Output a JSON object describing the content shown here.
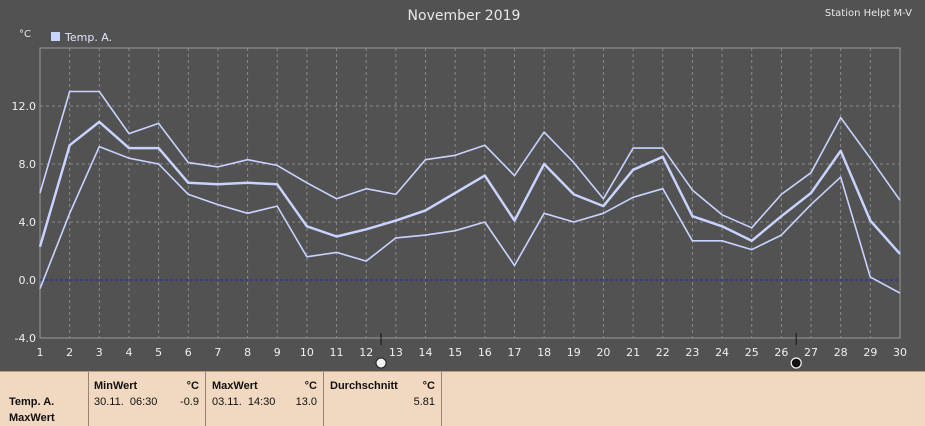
{
  "header": {
    "title": "November 2019",
    "station": "Station Helpt M-V",
    "unit": "°C"
  },
  "legend": {
    "label": "Temp. A.",
    "color": "#c8d4ff"
  },
  "colors": {
    "background": "#525252",
    "grid": "#8a8a8a",
    "line": "#c8d4ff",
    "zero_line": "#1f2bb0",
    "axis_text": "#f0f0f0",
    "stats_bg": "#f1d8c0"
  },
  "markers": {
    "full_moon_day": 12.5,
    "new_moon_day": 26.5
  },
  "chart_data": {
    "type": "line",
    "x": [
      1,
      2,
      3,
      4,
      5,
      6,
      7,
      8,
      9,
      10,
      11,
      12,
      13,
      14,
      15,
      16,
      17,
      18,
      19,
      20,
      21,
      22,
      23,
      24,
      25,
      26,
      27,
      28,
      29,
      30
    ],
    "xlim": [
      1,
      30
    ],
    "ylim": [
      -4,
      16
    ],
    "yticks": [
      -4,
      0,
      4,
      8,
      12
    ],
    "ytick_labels": [
      "-4.0",
      "0.0",
      "4.0",
      "8.0",
      "12.0"
    ],
    "xtick_labels": [
      "1",
      "2",
      "3",
      "4",
      "5",
      "6",
      "7",
      "8",
      "9",
      "10",
      "11",
      "12",
      "13",
      "14",
      "15",
      "16",
      "17",
      "18",
      "19",
      "20",
      "21",
      "22",
      "23",
      "24",
      "25",
      "26",
      "27",
      "28",
      "29",
      "30"
    ],
    "grid": true,
    "legend_position": "top-left",
    "series": [
      {
        "name": "Temp. A.",
        "role": "max",
        "values": [
          6.0,
          13.0,
          13.0,
          10.1,
          10.8,
          8.1,
          7.8,
          8.3,
          7.9,
          6.7,
          5.6,
          6.3,
          5.9,
          8.3,
          8.6,
          9.3,
          7.2,
          10.2,
          8.1,
          5.6,
          9.1,
          9.1,
          6.2,
          4.5,
          3.6,
          5.9,
          7.4,
          11.2,
          8.4,
          5.5
        ]
      },
      {
        "name": "Temp. A.",
        "role": "avg",
        "values": [
          2.3,
          9.3,
          10.9,
          9.1,
          9.1,
          6.7,
          6.6,
          6.7,
          6.6,
          3.7,
          3.0,
          3.5,
          4.1,
          4.8,
          6.0,
          7.2,
          4.1,
          8.0,
          5.9,
          5.1,
          7.6,
          8.5,
          4.4,
          3.7,
          2.7,
          4.4,
          6.0,
          8.9,
          4.1,
          1.8
        ]
      },
      {
        "name": "Temp. A.",
        "role": "min",
        "values": [
          -0.6,
          4.6,
          9.2,
          8.4,
          8.0,
          5.9,
          5.2,
          4.6,
          5.1,
          1.6,
          1.9,
          1.3,
          2.9,
          3.1,
          3.4,
          4.0,
          1.0,
          4.6,
          4.0,
          4.6,
          5.7,
          6.3,
          2.7,
          2.7,
          2.1,
          3.1,
          5.2,
          7.1,
          0.2,
          -0.9
        ]
      }
    ]
  },
  "stats": {
    "row_label": "Temp. A.",
    "row_sub_label": "MaxWert",
    "min": {
      "label": "MinWert",
      "unit": "°C",
      "datetime": "30.11.  06:30",
      "value": "-0.9"
    },
    "max": {
      "label": "MaxWert",
      "unit": "°C",
      "datetime": "03.11.  14:30",
      "value": "13.0"
    },
    "avg": {
      "label": "Durchschnitt",
      "unit": "°C",
      "value": "5.81"
    }
  }
}
